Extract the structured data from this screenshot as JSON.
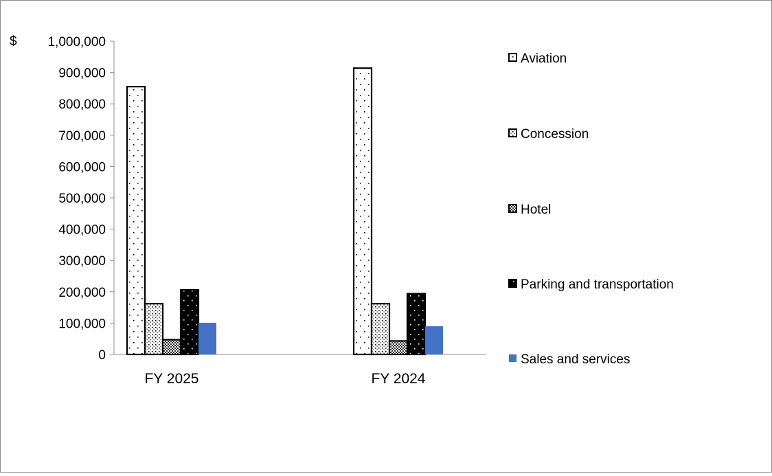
{
  "chart_data": {
    "type": "bar",
    "title": "",
    "xlabel": "",
    "ylabel": "",
    "y_currency_symbol": "$",
    "ylim": [
      0,
      1000000
    ],
    "y_ticks": [
      0,
      100000,
      200000,
      300000,
      400000,
      500000,
      600000,
      700000,
      800000,
      900000,
      1000000
    ],
    "y_tick_labels": [
      "0",
      "100,000",
      "200,000",
      "300,000",
      "400,000",
      "500,000",
      "600,000",
      "700,000",
      "800,000",
      "900,000",
      "1,000,000"
    ],
    "grid": false,
    "legend_position": "right",
    "categories": [
      "FY 2025",
      "FY 2024"
    ],
    "series": [
      {
        "name": "Aviation",
        "values": [
          855000,
          914000
        ],
        "pattern": "dots-sparse",
        "color": "#000000"
      },
      {
        "name": "Concession",
        "values": [
          162000,
          162000
        ],
        "pattern": "dots-medium",
        "color": "#000000"
      },
      {
        "name": "Hotel",
        "values": [
          47000,
          43000
        ],
        "pattern": "checker",
        "color": "#000000"
      },
      {
        "name": "Parking and transportation",
        "values": [
          206000,
          194000
        ],
        "pattern": "dark-dots",
        "color": "#000000"
      },
      {
        "name": "Sales and services",
        "values": [
          101000,
          90000
        ],
        "pattern": "solid",
        "color": "#4472C4"
      }
    ]
  }
}
